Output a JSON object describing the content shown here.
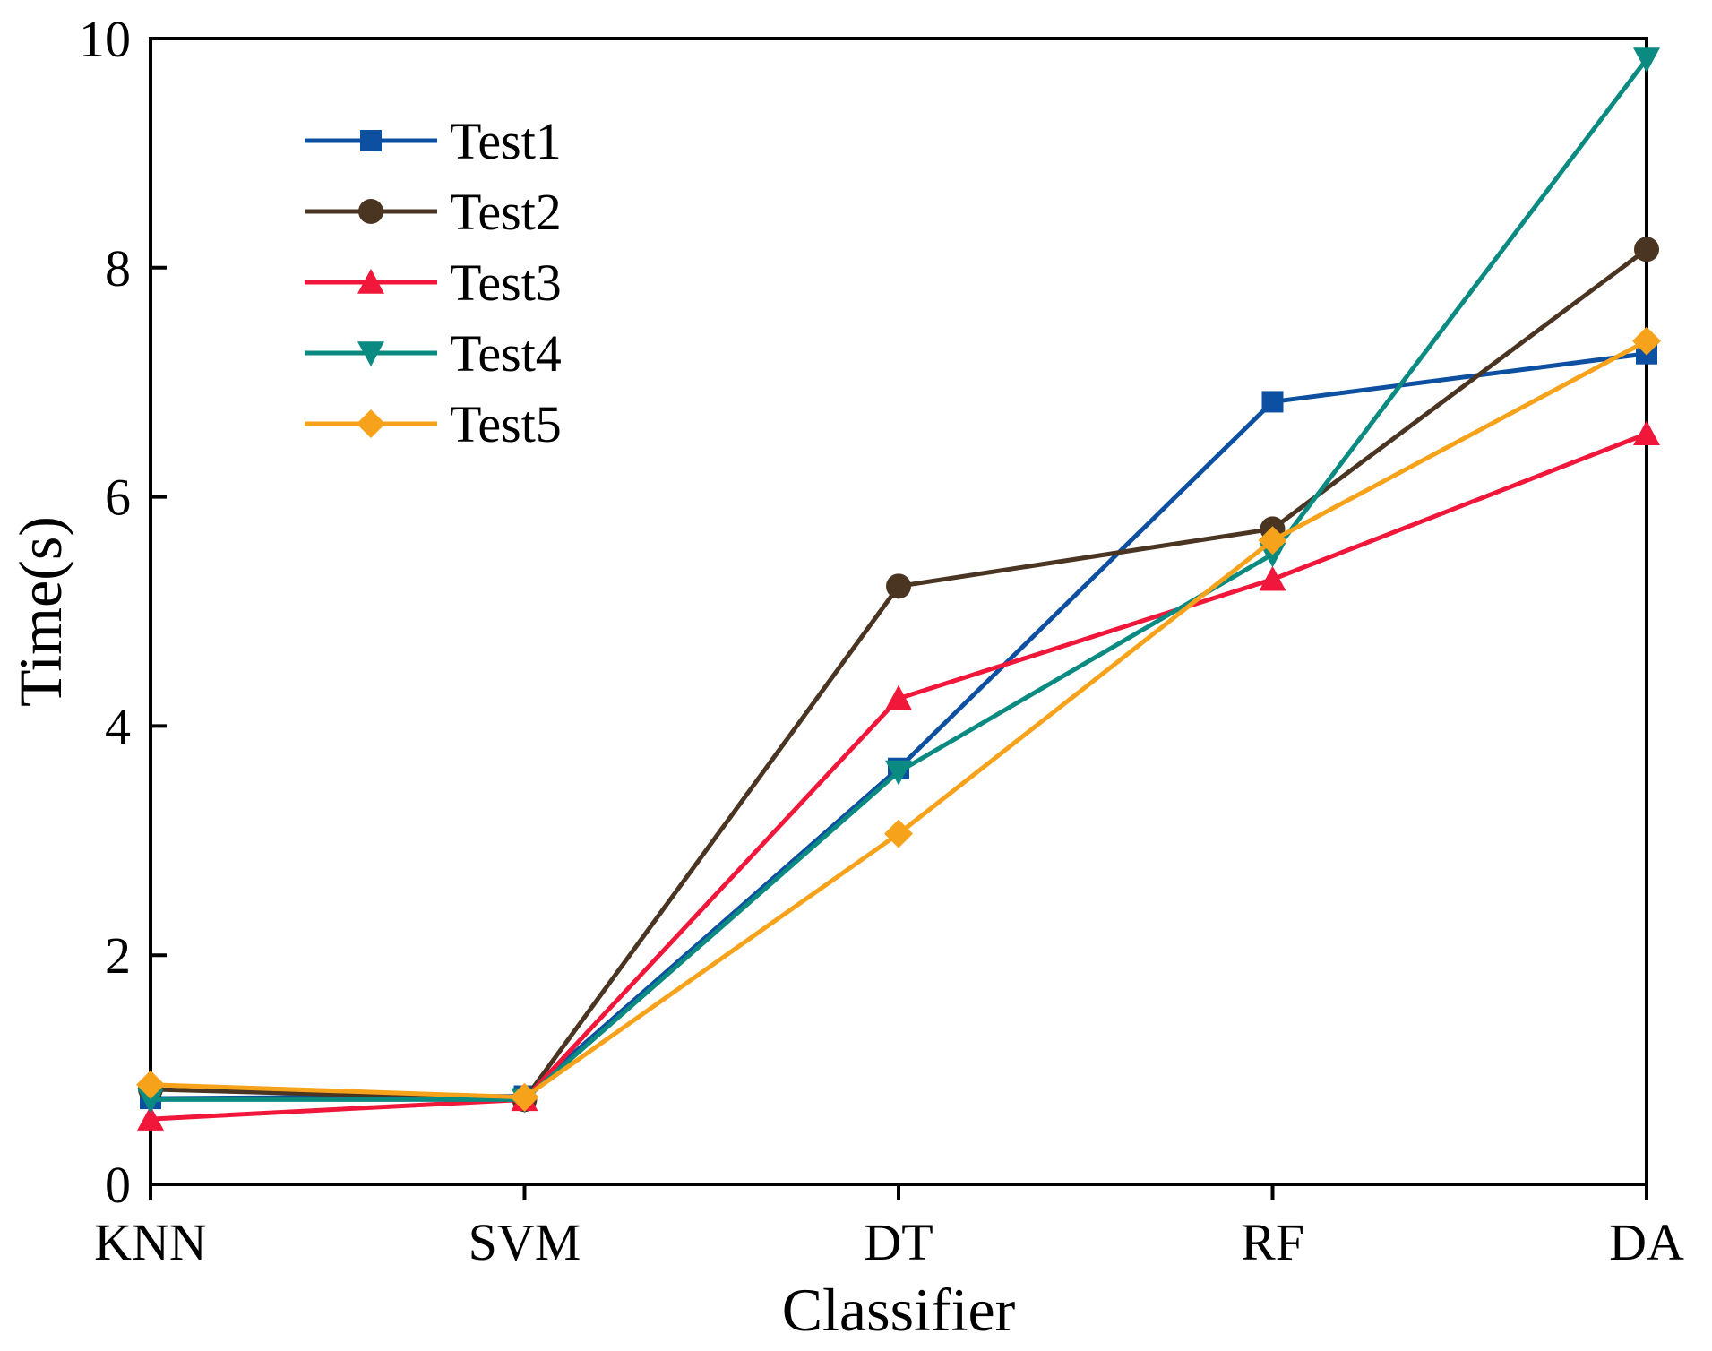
{
  "chart_data": {
    "type": "line",
    "title": "",
    "xlabel": "Classifier",
    "ylabel": "Time(s)",
    "categories": [
      "KNN",
      "SVM",
      "DT",
      "RF",
      "DA"
    ],
    "ylim": [
      0,
      10
    ],
    "yticks": [
      0,
      2,
      4,
      6,
      8,
      10
    ],
    "grid": false,
    "legend_position": "top-left",
    "series": [
      {
        "name": "Test1",
        "values": [
          0.75,
          0.77,
          3.63,
          6.83,
          7.25
        ],
        "color": "#0d4fa0",
        "marker": "square"
      },
      {
        "name": "Test2",
        "values": [
          0.83,
          0.74,
          5.22,
          5.72,
          8.16
        ],
        "color": "#4a3422",
        "marker": "circle"
      },
      {
        "name": "Test3",
        "values": [
          0.57,
          0.74,
          4.24,
          5.28,
          6.55
        ],
        "color": "#f0173b",
        "marker": "triangle-up"
      },
      {
        "name": "Test4",
        "values": [
          0.74,
          0.74,
          3.6,
          5.5,
          9.82
        ],
        "color": "#0a8a80",
        "marker": "triangle-down"
      },
      {
        "name": "Test5",
        "values": [
          0.87,
          0.76,
          3.06,
          5.62,
          7.36
        ],
        "color": "#f7a21b",
        "marker": "diamond"
      }
    ]
  }
}
